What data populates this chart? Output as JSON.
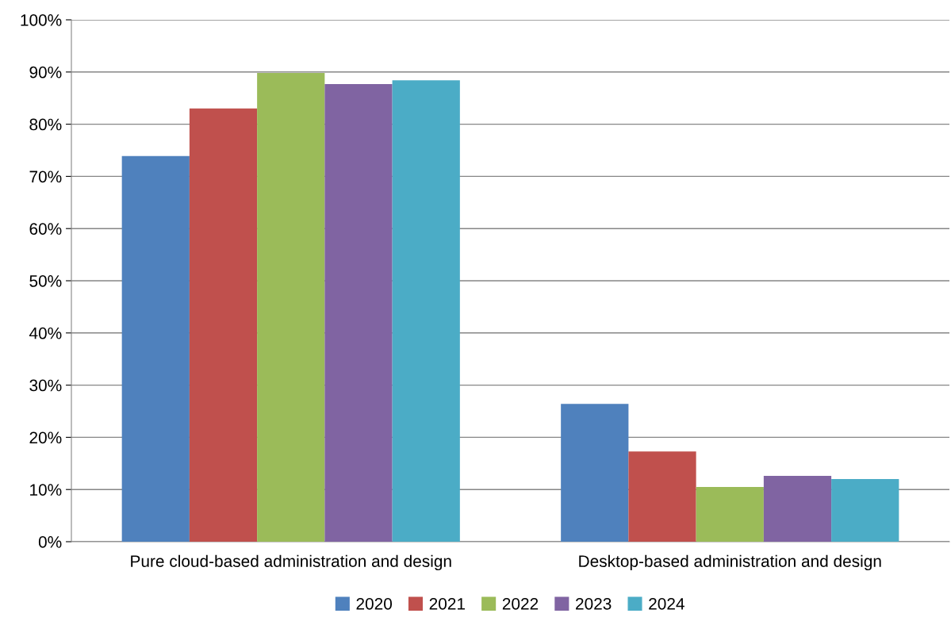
{
  "chart_data": {
    "type": "bar",
    "categories": [
      "Pure cloud-based administration and design",
      "Desktop-based administration and design"
    ],
    "series": [
      {
        "name": "2020",
        "color": "#4f81bd",
        "values": [
          73.9,
          26.4
        ]
      },
      {
        "name": "2021",
        "color": "#c0504d",
        "values": [
          83.0,
          17.3
        ]
      },
      {
        "name": "2022",
        "color": "#9bbb59",
        "values": [
          89.8,
          10.5
        ]
      },
      {
        "name": "2023",
        "color": "#8064a2",
        "values": [
          87.7,
          12.6
        ]
      },
      {
        "name": "2024",
        "color": "#4bacc6",
        "values": [
          88.4,
          12.0
        ]
      }
    ],
    "ylim": [
      0,
      100
    ],
    "yticks": [
      {
        "value": 0,
        "label": "0%"
      },
      {
        "value": 10,
        "label": "10%"
      },
      {
        "value": 20,
        "label": "20%"
      },
      {
        "value": 30,
        "label": "30%"
      },
      {
        "value": 40,
        "label": "40%"
      },
      {
        "value": 50,
        "label": "50%"
      },
      {
        "value": 60,
        "label": "60%"
      },
      {
        "value": 70,
        "label": "70%"
      },
      {
        "value": 80,
        "label": "80%"
      },
      {
        "value": 90,
        "label": "90%"
      },
      {
        "value": 100,
        "label": "100%"
      }
    ],
    "grid": "y",
    "legend": "bottom"
  }
}
